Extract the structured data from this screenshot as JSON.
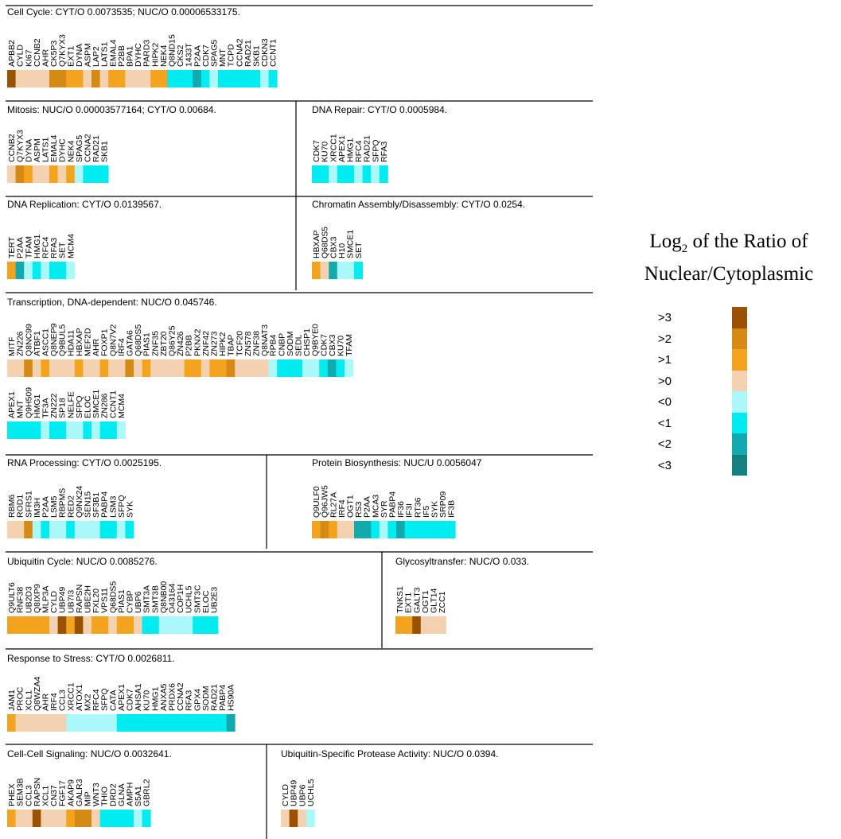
{
  "colors": {
    "gt3": "#9a5200",
    "gt2": "#d48a14",
    "gt1": "#f4a31f",
    "gt0": "#f4d2b0",
    "lt0": "#aaf8f8",
    "lt1": "#00ecf1",
    "lt2": "#13aaad",
    "lt3": "#167f7f"
  },
  "legend": {
    "title_prefix": "Log",
    "title_sub": "2",
    "title_rest": " of the Ratio of",
    "title_line2": "Nuclear/Cytoplasmic",
    "items": [
      {
        "label": ">3",
        "key": "gt3"
      },
      {
        "label": ">2",
        "key": "gt2"
      },
      {
        "label": ">1",
        "key": "gt1"
      },
      {
        "label": ">0",
        "key": "gt0"
      },
      {
        "label": "<0",
        "key": "lt0"
      },
      {
        "label": "<1",
        "key": "lt1"
      },
      {
        "label": "<2",
        "key": "lt2"
      },
      {
        "label": "<3",
        "key": "lt3"
      }
    ]
  },
  "chart_data": {
    "type": "heatmap",
    "panels": [
      {
        "title": "Cell Cycle: CYT/O 0.0073535; NUC/O 0.00006533175.",
        "genes": [
          "APBB2",
          "CYLD",
          "KI67",
          "CCNB2",
          "AHR",
          "CK5P3",
          "Q7KYX3",
          "EXT1",
          "DYNA",
          "ASPM",
          "LAP2",
          "LATS1",
          "EMAL4",
          "P2BB",
          "BPA1",
          "DYHC",
          "PARD3",
          "HIPK2",
          "NEK4",
          "Q8ND15",
          "CKS2",
          "1433T",
          "P2AA",
          "CDK7",
          "SPAG5",
          "MNT",
          "TCPD",
          "CCNA2",
          "RAD21",
          "SKB1",
          "CDKN3",
          "CCNT1"
        ],
        "values": [
          ">3",
          ">0",
          ">0",
          ">0",
          ">0",
          ">2",
          ">2",
          ">1",
          ">1",
          ">0",
          ">2",
          ">0",
          ">1",
          ">1",
          ">0",
          ">0",
          ">0",
          ">1",
          ">1",
          "<1",
          "<1",
          "<1",
          "<2",
          "<1",
          "<0",
          "<1",
          "<1",
          "<1",
          "<1",
          "<1",
          "<0",
          "<1"
        ]
      },
      {
        "title": "Mitosis: NUC/O 0.00003577164; CYT/O  0.00684.",
        "genes": [
          "CCNB2",
          "Q7KYX3",
          "DYNA",
          "ASPM",
          "LATS1",
          "EMAL4",
          "DYHC",
          "NEK4",
          "SPAG5",
          "CCNA2",
          "RAD21",
          "SKB1"
        ],
        "values": [
          ">0",
          ">2",
          ">1",
          ">0",
          ">0",
          ">1",
          ">0",
          ">1",
          "<0",
          "<1",
          "<1",
          "<1"
        ]
      },
      {
        "title": "DNA Repair: CYT/O 0.0005984.",
        "genes": [
          "CDK7",
          "KU70",
          "XRCC1",
          "APEX1",
          "HMG1",
          "RFC4",
          "RAD21",
          "SFPQ",
          "RFA3"
        ],
        "values": [
          "<1",
          "<1",
          "<0",
          "<1",
          "<1",
          "<0",
          "<1",
          "<0",
          "<1"
        ]
      },
      {
        "title": "DNA Replication: CYT/O 0.0139567.",
        "genes": [
          "TERT",
          "P2AA",
          "TFAM",
          "HMG1",
          "RFC4",
          "RFA3",
          "SET",
          "MCM4"
        ],
        "values": [
          ">1",
          "<2",
          "<0",
          "<1",
          "<0",
          "<1",
          "<1",
          "<0"
        ]
      },
      {
        "title": "Chromatin Assembly/Disassembly: CYT/O 0.0254.",
        "genes": [
          "HBXAP",
          "Q68DS5",
          "CBX3",
          "H10",
          "SMCE1",
          "SET"
        ],
        "values": [
          ">1",
          ">0",
          "<2",
          "<0",
          "<0",
          "<1"
        ]
      },
      {
        "title": "Transcription, DNA-dependent: NUC/O 0.045746.",
        "genes": [
          "MITF",
          "ZN226",
          "Q8NC99",
          "ATBF1",
          "ASCC1",
          "Q8NEP9",
          "Q9BUL5",
          "HDA11",
          "HBXAP",
          "MEF2D",
          "AHR",
          "FOXP1",
          "Q8N7V2",
          "IRF4",
          "GATA6",
          "Q68DS5",
          "PIAS1",
          "ZNF35",
          "ZBT20",
          "Q86Y25",
          "ZN426",
          "P2BB",
          "PKNX2",
          "ZNF42",
          "ZN273",
          "HIPK2",
          "TBAP",
          "TCF20",
          "ZN578",
          "ZNF38",
          "Q8NAT3",
          "RPB4",
          "CNBP",
          "SODM",
          "SEDL",
          "CHSP1",
          "Q9BYE0",
          "CDK7",
          "CBX3",
          "KU70",
          "TFAM"
        ],
        "values": [
          ">0",
          ">0",
          ">2",
          ">0",
          ">1",
          ">0",
          ">0",
          ">0",
          ">1",
          ">0",
          ">0",
          ">1",
          ">0",
          ">0",
          ">2",
          ">0",
          ">1",
          ">0",
          ">0",
          ">0",
          ">0",
          ">1",
          ">1",
          ">0",
          ">1",
          ">1",
          ">2",
          ">0",
          ">0",
          ">0",
          ">0",
          "<0",
          "<1",
          "<1",
          "<1",
          "<0",
          "<0",
          "<1",
          "<2",
          "<1",
          "<0"
        ]
      },
      {
        "title": "",
        "genes": [
          "APEX1",
          "MNT",
          "Q9H509",
          "HMG1",
          "TF3A",
          "ZN222",
          "SP18",
          "NELFE",
          "SFPQ",
          "ELOC",
          "SMCE1",
          "ZN286",
          "CCNT1",
          "MCM4"
        ],
        "values": [
          "<1",
          "<1",
          "<1",
          "<1",
          "<0",
          "<1",
          "<1",
          "<0",
          "<0",
          "<1",
          "<0",
          "<1",
          "<1",
          "<0"
        ]
      },
      {
        "title": "RNA Processing: CYT/O 0.0025195.",
        "genes": [
          "RBM6",
          "ROD1",
          "SFRS1",
          "IM3H",
          "P2AA",
          "LSM5",
          "RBPMS",
          "RED2",
          "Q9NX24",
          "SEN15",
          "SF3B1",
          "PABP4",
          "LSM3",
          "SFPQ",
          "SYK"
        ],
        "values": [
          ">0",
          ">0",
          ">2",
          "<0",
          "<1",
          "<0",
          "<0",
          "<1",
          "<0",
          "<0",
          "<0",
          "<1",
          "<1",
          "<0",
          "<1"
        ]
      },
      {
        "title": "Protein Biosynthesis: NUC/U 0.0056047",
        "genes": [
          "Q9ULF0",
          "Q96JW5",
          "RL27A",
          "IRF4",
          "OGT1",
          "RS3",
          "P2AA",
          "MCA3",
          "SYR",
          "PABP4",
          "IF36",
          "IF3I",
          "RT36",
          "IF5",
          "SYK",
          "SRP09",
          "IF3B"
        ],
        "values": [
          ">1",
          ">2",
          ">1",
          ">0",
          ">0",
          "<2",
          "<2",
          "<1",
          "<0",
          "<1",
          "<2",
          "<1",
          "<1",
          "<1",
          "<1",
          "<1",
          "<1"
        ]
      },
      {
        "title": "Ubiquitin Cycle: NUC/O 0.0085276.",
        "genes": [
          "Q9ULT6",
          "RNF38",
          "UB2D3",
          "Q8IXP9",
          "MLP3A",
          "CYLD",
          "UBP49",
          "UB7I3",
          "RAPSN",
          "UBE2H",
          "FXL20",
          "VPS11",
          "Q68DS5",
          "PIAS1",
          "CYBP",
          "UBP6",
          "SMT3A",
          "SMT3B",
          "Q8NB00",
          "O43164",
          "COP1H",
          "UCHL5",
          "SMT3C",
          "ELOC",
          "UB2E3"
        ],
        "values": [
          ">1",
          ">1",
          ">1",
          ">1",
          ">1",
          ">0",
          ">3",
          ">1",
          ">3",
          ">0",
          ">1",
          ">1",
          ">0",
          ">1",
          ">1",
          ">0",
          "<1",
          "<1",
          "<0",
          "<0",
          "<0",
          "<0",
          "<1",
          "<1",
          "<1"
        ]
      },
      {
        "title": "Glycosyltransfer: NUC/O 0.033.",
        "genes": [
          "TNKS1",
          "EXT1",
          "GALT3",
          "OGT1",
          "GLT14",
          "ZCC1"
        ],
        "values": [
          ">1",
          ">1",
          ">3",
          ">0",
          ">0",
          ">0"
        ]
      },
      {
        "title": "Response to Stress: CYT/O 0.0026811.",
        "genes": [
          "JAM1",
          "PROC",
          "XCL1",
          "Q8WZA4",
          "AHR",
          "IRF4",
          "CCL3",
          "XRCC1",
          "ATOX1",
          "MX2",
          "RFC4",
          "SFPQ",
          "CATA",
          "APEX1",
          "CDK7",
          "AHSA1",
          "KU70",
          "HMG1",
          "ANXA5",
          "PRDX6",
          "CCNA2",
          "RFA3",
          "GPX4",
          "SODM",
          "RAD21",
          "PABP4",
          "HS90A"
        ],
        "values": [
          ">1",
          ">0",
          ">0",
          ">0",
          ">0",
          ">0",
          ">0",
          "<0",
          "<0",
          "<0",
          "<0",
          "<0",
          "<0",
          "<1",
          "<1",
          "<1",
          "<1",
          "<1",
          "<1",
          "<1",
          "<1",
          "<1",
          "<1",
          "<1",
          "<1",
          "<1",
          "<2"
        ]
      },
      {
        "title": "Cell-Cell Signaling: NUC/O 0.0032641.",
        "genes": [
          "PHEX",
          "SEM3B",
          "CCL3",
          "RAPSN",
          "XCL1",
          "CN37",
          "FGF17",
          "AKAP9",
          "GALR3",
          "MIP",
          "WNT3",
          "THIO",
          "DRD2",
          "GLNA",
          "AMPH",
          "S5A1",
          "GBRL2"
        ],
        "values": [
          ">1",
          ">0",
          ">0",
          ">3",
          ">0",
          ">0",
          ">0",
          ">1",
          ">2",
          ">2",
          ">0",
          "<1",
          "<1",
          "<1",
          "<1",
          "<0",
          "<1"
        ]
      },
      {
        "title": "Ubiquitin-Specific Protease Activity: NUC/O 0.0394.",
        "genes": [
          "CYLD",
          "UBP49",
          "UBP6",
          "UCHL5"
        ],
        "values": [
          ">0",
          ">3",
          ">0",
          "<0"
        ]
      }
    ]
  }
}
